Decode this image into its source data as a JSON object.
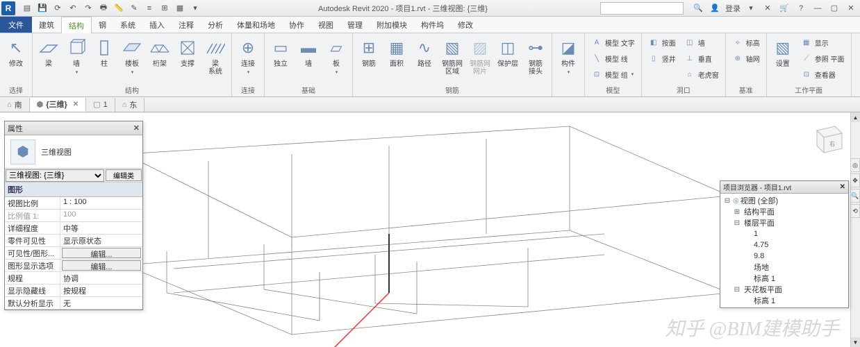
{
  "titlebar": {
    "app_letter": "R",
    "title_text": "Autodesk Revit 2020 - 项目1.rvt - 三维视图: {三维}",
    "login_text": "登录"
  },
  "menu": {
    "file": "文件",
    "tabs": [
      "建筑",
      "结构",
      "钢",
      "系统",
      "插入",
      "注释",
      "分析",
      "体量和场地",
      "协作",
      "视图",
      "管理",
      "附加模块",
      "构件坞",
      "修改"
    ],
    "active_index": 1
  },
  "ribbon": {
    "select": {
      "modify": "修改",
      "group": "选择"
    },
    "structure": {
      "beam": "梁",
      "wall": "墙",
      "column": "柱",
      "floor": "楼板",
      "truss": "桁架",
      "brace": "支撑",
      "beamsys": "梁\n系统",
      "group": "结构"
    },
    "connect": {
      "connect": "连接",
      "group": "连接"
    },
    "foundation": {
      "iso": "独立",
      "wall": "墙",
      "slab": "板",
      "group": "基础"
    },
    "rebar": {
      "rebar": "钢筋",
      "area": "面积",
      "path": "路径",
      "fabric": "钢筋网\n区域",
      "sheet": "钢筋网\n网片",
      "cover": "保护层",
      "coupler": "钢筋\n接头",
      "group": "钢筋"
    },
    "component": {
      "comp": "构件",
      "group": ""
    },
    "model": {
      "text": "模型 文字",
      "line": "模型 线",
      "mgroup": "模型 组",
      "group": "模型"
    },
    "opening": {
      "byface": "按面",
      "vert": "竖井",
      "wall": "墙",
      "vertop": "垂直",
      "dormer": "老虎窗",
      "group": "洞口"
    },
    "datum": {
      "level": "标高",
      "grid": "轴网",
      "group": "基准"
    },
    "workplane": {
      "set": "设置",
      "show": "显示",
      "ref": "参照 平面",
      "viewer": "查看器",
      "group": "工作平面"
    }
  },
  "viewtabs": {
    "t1": "南",
    "t2": "{三维}",
    "t3": "1",
    "t4": "东"
  },
  "properties": {
    "title": "属性",
    "type_name": "三维视图",
    "selector": "三维视图: {三维}",
    "edit_type": "编辑类",
    "cat_graphics": "图形",
    "rows": [
      {
        "k": "视图比例",
        "v": "1 : 100"
      },
      {
        "k": "比例值 1:",
        "v": "100",
        "dim": true
      },
      {
        "k": "详细程度",
        "v": "中等"
      },
      {
        "k": "零件可见性",
        "v": "显示原状态"
      },
      {
        "k": "可见性/图形...",
        "v": "编辑...",
        "btn": true
      },
      {
        "k": "图形显示选项",
        "v": "编辑...",
        "btn": true
      },
      {
        "k": "规程",
        "v": "协调"
      },
      {
        "k": "显示隐藏线",
        "v": "按规程"
      },
      {
        "k": "默认分析显示",
        "v": "无"
      }
    ]
  },
  "browser": {
    "title": "项目浏览器 - 项目1.rvt",
    "nodes": [
      {
        "d": 0,
        "tw": "⊟",
        "ico": "◎",
        "label": "视图 (全部)"
      },
      {
        "d": 1,
        "tw": "⊞",
        "ico": "",
        "label": "结构平面"
      },
      {
        "d": 1,
        "tw": "⊟",
        "ico": "",
        "label": "楼层平面"
      },
      {
        "d": 2,
        "tw": "",
        "ico": "",
        "label": "1"
      },
      {
        "d": 2,
        "tw": "",
        "ico": "",
        "label": "4.75"
      },
      {
        "d": 2,
        "tw": "",
        "ico": "",
        "label": "9.8"
      },
      {
        "d": 2,
        "tw": "",
        "ico": "",
        "label": "场地"
      },
      {
        "d": 2,
        "tw": "",
        "ico": "",
        "label": "标高 1"
      },
      {
        "d": 1,
        "tw": "⊟",
        "ico": "",
        "label": "天花板平面"
      },
      {
        "d": 2,
        "tw": "",
        "ico": "",
        "label": "标高 1"
      }
    ]
  },
  "watermark": "知乎 @BIM建模助手",
  "colors": {
    "iconblue": "#6a8cb5",
    "accent": "#2a579a"
  }
}
